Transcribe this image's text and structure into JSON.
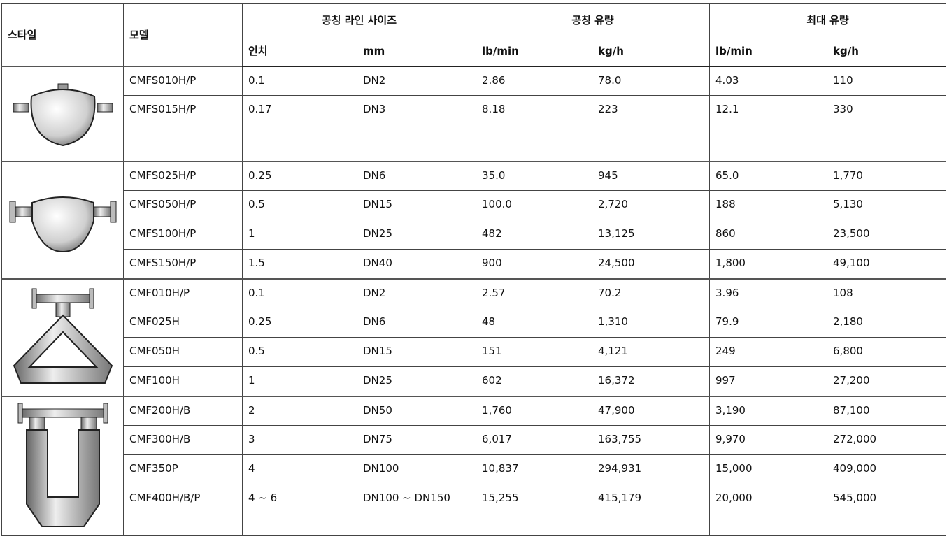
{
  "table": {
    "header": {
      "style": "스타일",
      "model": "모델",
      "groups": [
        "공칭 라인 사이즈",
        "공칭 유량",
        "최대 유량"
      ],
      "units": [
        "인치",
        "mm",
        "lb/min",
        "kg/h",
        "lb/min",
        "kg/h"
      ]
    },
    "groups": [
      {
        "rows": [
          [
            "CMFS010H/P",
            "0.1",
            "DN2",
            "2.86",
            "78.0",
            "4.03",
            "110"
          ],
          [
            "CMFS015H/P",
            "0.17",
            "DN3",
            "8.18",
            "223",
            "12.1",
            "330"
          ]
        ]
      },
      {
        "rows": [
          [
            "CMFS025H/P",
            "0.25",
            "DN6",
            "35.0",
            "945",
            "65.0",
            "1,770"
          ],
          [
            "CMFS050H/P",
            "0.5",
            "DN15",
            "100.0",
            "2,720",
            "188",
            "5,130"
          ],
          [
            "CMFS100H/P",
            "1",
            "DN25",
            "482",
            "13,125",
            "860",
            "23,500"
          ],
          [
            "CMFS150H/P",
            "1.5",
            "DN40",
            "900",
            "24,500",
            "1,800",
            "49,100"
          ]
        ]
      },
      {
        "rows": [
          [
            "CMF010H/P",
            "0.1",
            "DN2",
            "2.57",
            "70.2",
            "3.96",
            "108"
          ],
          [
            "CMF025H",
            "0.25",
            "DN6",
            "48",
            "1,310",
            "79.9",
            "2,180"
          ],
          [
            "CMF050H",
            "0.5",
            "DN15",
            "151",
            "4,121",
            "249",
            "6,800"
          ],
          [
            "CMF100H",
            "1",
            "DN25",
            "602",
            "16,372",
            "997",
            "27,200"
          ]
        ]
      },
      {
        "rows": [
          [
            "CMF200H/B",
            "2",
            "DN50",
            "1,760",
            "47,900",
            "3,190",
            "87,100"
          ],
          [
            "CMF300H/B",
            "3",
            "DN75",
            "6,017",
            "163,755",
            "9,970",
            "272,000"
          ],
          [
            "CMF350P",
            "4",
            "DN100",
            "10,837",
            "294,931",
            "15,000",
            "409,000"
          ],
          [
            "CMF400H/B/P",
            "4 ~ 6",
            "DN100 ~ DN150",
            "15,255",
            "415,179",
            "20,000",
            "545,000"
          ]
        ]
      }
    ]
  }
}
